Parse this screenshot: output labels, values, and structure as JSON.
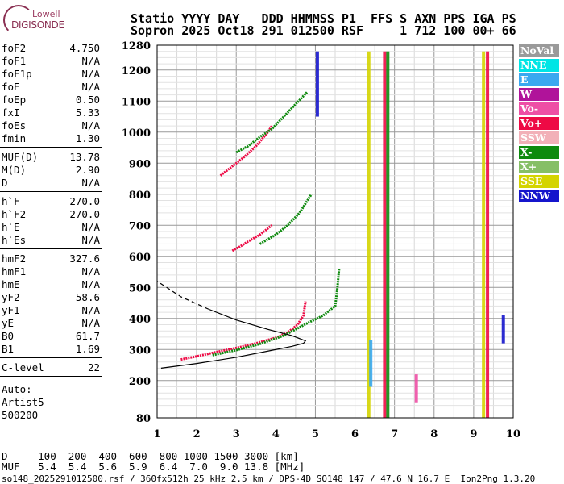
{
  "logo": {
    "line1": "Lowell",
    "line2": "DIGISONDE"
  },
  "header": {
    "line1": "Statio YYYY DAY   DDD HHMMSS P1  FFS S AXN PPS IGA PS",
    "line2": "Sopron 2025 Oct18 291 012500 RSF     1 712 100 00+ 66"
  },
  "params": {
    "group1": [
      {
        "k": "foF2",
        "v": "4.750"
      },
      {
        "k": "foF1",
        "v": "N/A"
      },
      {
        "k": "foF1p",
        "v": "N/A"
      },
      {
        "k": "foE",
        "v": "N/A"
      },
      {
        "k": "foEp",
        "v": "0.50"
      },
      {
        "k": "fxI",
        "v": "5.33"
      },
      {
        "k": "foEs",
        "v": "N/A"
      },
      {
        "k": "fmin",
        "v": "1.30"
      }
    ],
    "group2": [
      {
        "k": "MUF(D)",
        "v": "13.78"
      },
      {
        "k": "M(D)",
        "v": "2.90"
      },
      {
        "k": "D",
        "v": "N/A"
      }
    ],
    "group3": [
      {
        "k": "h`F",
        "v": "270.0"
      },
      {
        "k": "h`F2",
        "v": "270.0"
      },
      {
        "k": "h`E",
        "v": "N/A"
      },
      {
        "k": "h`Es",
        "v": "N/A"
      }
    ],
    "group4": [
      {
        "k": "hmF2",
        "v": "327.6"
      },
      {
        "k": "hmF1",
        "v": "N/A"
      },
      {
        "k": "hmE",
        "v": "N/A"
      },
      {
        "k": "yF2",
        "v": "58.6"
      },
      {
        "k": "yF1",
        "v": "N/A"
      },
      {
        "k": "yE",
        "v": "N/A"
      },
      {
        "k": "B0",
        "v": "61.7"
      },
      {
        "k": "B1",
        "v": "1.69"
      }
    ],
    "group5": [
      {
        "k": "C-level",
        "v": "22"
      }
    ],
    "auto_label": "Auto:",
    "artist": "Artist5",
    "artist_version": "500200"
  },
  "legend": [
    {
      "label": "NoVal",
      "color": "#9a9a9a"
    },
    {
      "label": "NNE",
      "color": "#00e5e5"
    },
    {
      "label": "E",
      "color": "#3aa8f0"
    },
    {
      "label": "W",
      "color": "#b0139a"
    },
    {
      "label": "Vo-",
      "color": "#ee4fa5"
    },
    {
      "label": "Vo+",
      "color": "#ee0a45"
    },
    {
      "label": "SSW",
      "color": "#f2b0b8"
    },
    {
      "label": "X-",
      "color": "#0e8a0e"
    },
    {
      "label": "X+",
      "color": "#86bf66"
    },
    {
      "label": "SSE",
      "color": "#d4d400"
    },
    {
      "label": "NNW",
      "color": "#1515cc"
    }
  ],
  "footer": {
    "line1": "D     100  200  400  600  800 1000 1500 3000 [km]",
    "line2": "MUF   5.4  5.4  5.6  5.9  6.4  7.0  9.0 13.8 [MHz]",
    "source": "so148_2025291012500.rsf / 360fx512h 25 kHz 2.5 km / DPS-4D SO148 147 / 47.6 N 16.7 E  Ion2Png 1.3.20"
  },
  "chart_data": {
    "type": "scatter",
    "xlabel": "",
    "ylabel": "",
    "xlim": [
      1,
      10
    ],
    "ylim": [
      80,
      1280
    ],
    "x_ticks": [
      1,
      2,
      3,
      4,
      5,
      6,
      7,
      8,
      9,
      10
    ],
    "y_ticks": [
      80,
      200,
      300,
      400,
      500,
      600,
      700,
      800,
      900,
      1000,
      1100,
      1200,
      1280
    ],
    "grid": true,
    "traces": [
      {
        "name": "O-trace F2",
        "color": "#ee0a45",
        "points": [
          [
            1.6,
            268
          ],
          [
            2.0,
            278
          ],
          [
            2.5,
            292
          ],
          [
            3.0,
            305
          ],
          [
            3.5,
            320
          ],
          [
            4.0,
            338
          ],
          [
            4.3,
            355
          ],
          [
            4.55,
            380
          ],
          [
            4.7,
            410
          ],
          [
            4.75,
            455
          ]
        ]
      },
      {
        "name": "X-trace F2",
        "color": "#0e8a0e",
        "points": [
          [
            2.4,
            282
          ],
          [
            3.0,
            298
          ],
          [
            3.6,
            318
          ],
          [
            4.2,
            345
          ],
          [
            4.8,
            385
          ],
          [
            5.2,
            410
          ],
          [
            5.5,
            440
          ],
          [
            5.55,
            490
          ],
          [
            5.6,
            560
          ]
        ]
      },
      {
        "name": "2nd-hop O",
        "color": "#ee0a45",
        "points": [
          [
            2.9,
            618
          ],
          [
            3.1,
            632
          ],
          [
            3.3,
            648
          ],
          [
            3.6,
            670
          ],
          [
            3.9,
            700
          ]
        ]
      },
      {
        "name": "2nd-hop X",
        "color": "#0e8a0e",
        "points": [
          [
            3.6,
            640
          ],
          [
            4.0,
            670
          ],
          [
            4.3,
            700
          ],
          [
            4.6,
            740
          ],
          [
            4.9,
            800
          ]
        ]
      },
      {
        "name": "3rd-hop O",
        "color": "#ee0a45",
        "points": [
          [
            2.6,
            860
          ],
          [
            2.8,
            880
          ],
          [
            3.0,
            900
          ],
          [
            3.2,
            920
          ],
          [
            3.5,
            955
          ],
          [
            3.8,
            1000
          ],
          [
            3.9,
            1020
          ]
        ]
      },
      {
        "name": "3rd-hop X",
        "color": "#0e8a0e",
        "points": [
          [
            3.0,
            935
          ],
          [
            3.3,
            955
          ],
          [
            3.6,
            985
          ],
          [
            3.9,
            1010
          ],
          [
            4.2,
            1050
          ],
          [
            4.5,
            1090
          ],
          [
            4.8,
            1130
          ]
        ]
      }
    ],
    "profile_solid": [
      [
        1.1,
        240
      ],
      [
        2.0,
        255
      ],
      [
        3.0,
        275
      ],
      [
        3.8,
        295
      ],
      [
        4.4,
        310
      ],
      [
        4.7,
        320
      ],
      [
        4.75,
        328
      ],
      [
        4.4,
        345
      ],
      [
        3.8,
        365
      ],
      [
        3.0,
        395
      ],
      [
        2.3,
        430
      ]
    ],
    "profile_dashed": [
      [
        2.3,
        430
      ],
      [
        1.6,
        470
      ],
      [
        1.0,
        520
      ]
    ],
    "bands": [
      {
        "x": 6.35,
        "y1": 80,
        "y2": 1260,
        "color": "#d4d400"
      },
      {
        "x": 6.75,
        "y1": 80,
        "y2": 1260,
        "color": "#ee0a45"
      },
      {
        "x": 6.83,
        "y1": 80,
        "y2": 1260,
        "color": "#0e8a0e"
      },
      {
        "x": 9.25,
        "y1": 80,
        "y2": 1260,
        "color": "#d4d400"
      },
      {
        "x": 9.35,
        "y1": 80,
        "y2": 1260,
        "color": "#ee0a45"
      },
      {
        "x": 6.4,
        "y1": 180,
        "y2": 330,
        "color": "#3aa8f0"
      },
      {
        "x": 7.55,
        "y1": 130,
        "y2": 220,
        "color": "#ee4fa5"
      },
      {
        "x": 9.75,
        "y1": 320,
        "y2": 410,
        "color": "#1515cc"
      },
      {
        "x": 5.05,
        "y1": 1050,
        "y2": 1260,
        "color": "#1515cc"
      }
    ]
  }
}
